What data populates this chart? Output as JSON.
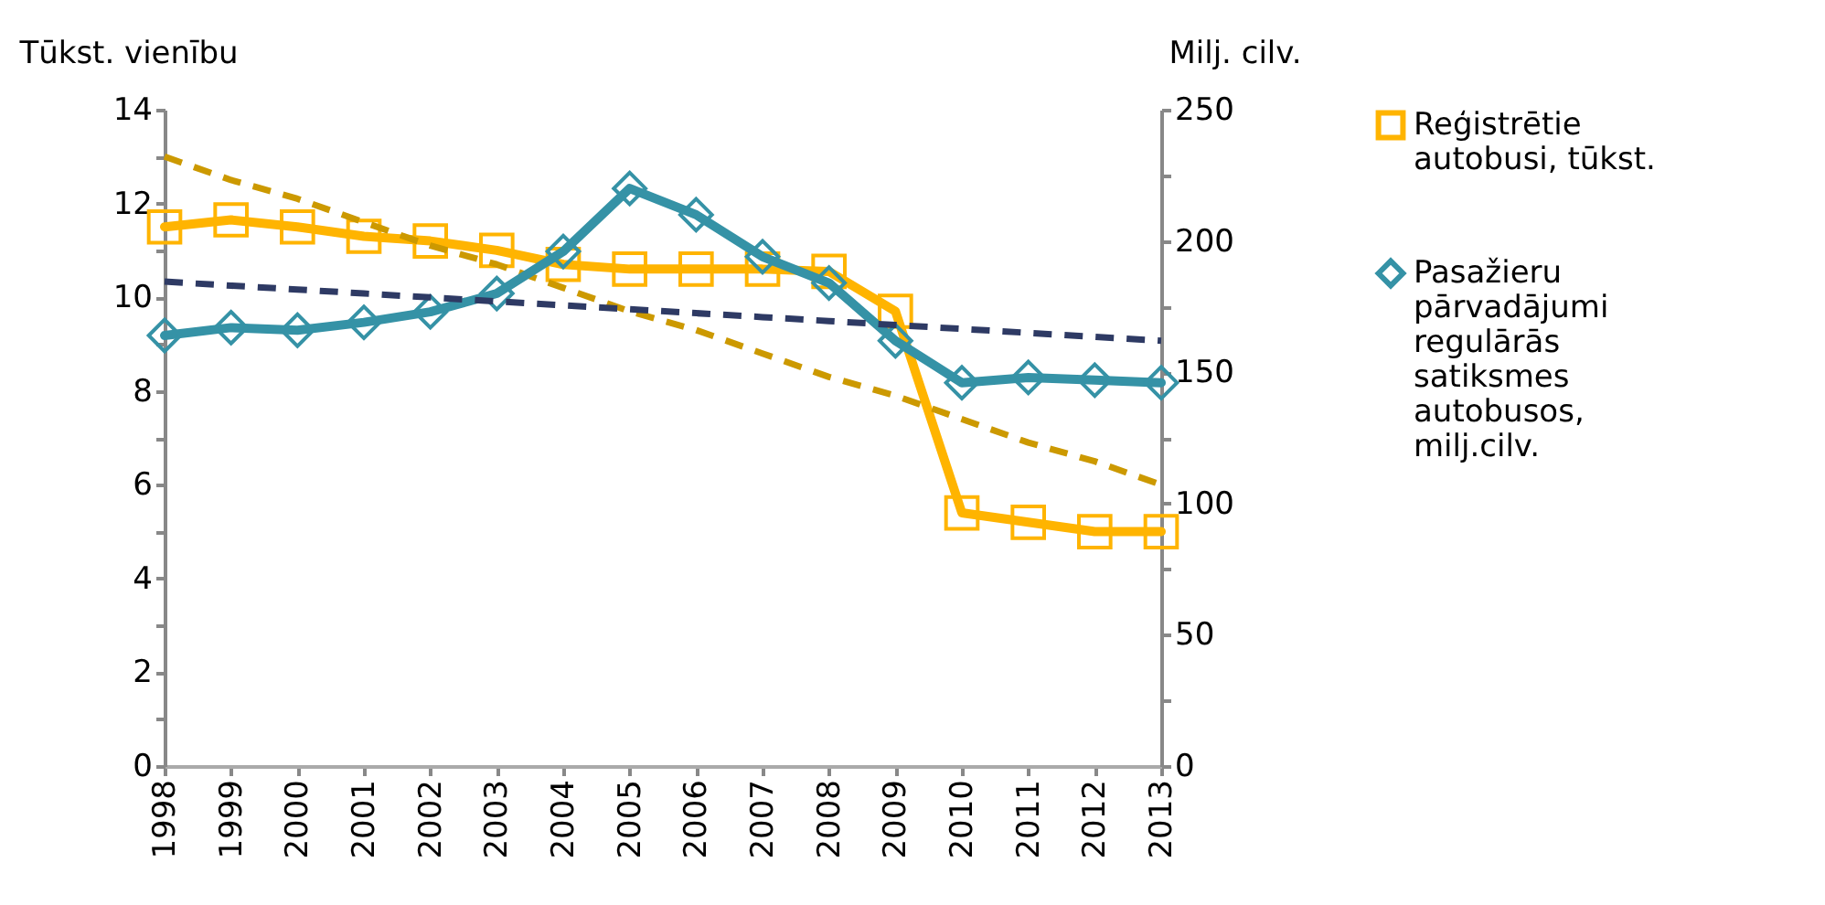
{
  "chart_data": {
    "type": "line",
    "ylabel": "Tūkst. vienību",
    "y2label": "Milj. cilv.",
    "categories": [
      "1998",
      "1999",
      "2000",
      "2001",
      "2002",
      "2003",
      "2004",
      "2005",
      "2006",
      "2007",
      "2008",
      "2009",
      "2010",
      "2011",
      "2012",
      "2013"
    ],
    "series": [
      {
        "name": "Reģistrētie autobusi, tūkst.",
        "color": "#ffb400",
        "marker": "square",
        "values": [
          11.5,
          11.65,
          11.5,
          11.3,
          11.2,
          11.0,
          10.7,
          10.6,
          10.6,
          10.6,
          10.55,
          9.7,
          5.4,
          5.2,
          5.0,
          5.0
        ]
      },
      {
        "name": "Pasažieru pārvadājumi regulārās satiksmes autobusos, milj.cilv.",
        "color": "#3592a6",
        "marker": "diamond",
        "axis": "y2",
        "values": [
          164,
          167,
          166,
          169,
          173,
          180,
          196,
          220,
          210,
          194,
          184,
          162,
          146,
          148,
          147,
          146
        ]
      },
      {
        "type": "line",
        "color": "#cc9900",
        "line_style": "dashed",
        "values": [
          13.0,
          12.5,
          12.1,
          11.6,
          11.1,
          10.7,
          10.2,
          9.7,
          9.3,
          8.8,
          8.3,
          7.9,
          7.4,
          6.9,
          6.5,
          6.0
        ]
      },
      {
        "type": "line",
        "color": "#2e3a64",
        "line_style": "dashed",
        "axis": "y2",
        "values": [
          184.5,
          183,
          181.5,
          180,
          178.5,
          177,
          175.5,
          174,
          172.5,
          171,
          169.5,
          168,
          166.5,
          165,
          163.5,
          162
        ]
      }
    ],
    "ylim": [
      0,
      14
    ],
    "yticks": [
      0,
      {
        "value": 1,
        "label": null
      },
      2,
      {
        "value": 3,
        "label": null
      },
      4,
      {
        "value": 5,
        "label": null
      },
      6,
      {
        "value": 7,
        "label": null
      },
      8,
      {
        "value": 9,
        "label": null
      },
      10,
      {
        "value": 11,
        "label": null
      },
      12,
      {
        "value": 13,
        "label": null
      },
      14
    ],
    "y2lim": [
      0,
      250
    ],
    "y2ticks": [
      0,
      {
        "value": 25,
        "label": null
      },
      50,
      {
        "value": 75,
        "label": null
      },
      100,
      {
        "value": 125,
        "label": null
      },
      150,
      {
        "value": 175,
        "label": null
      },
      200,
      {
        "value": 225,
        "label": null
      },
      250
    ],
    "grid": false,
    "legend": "right"
  }
}
